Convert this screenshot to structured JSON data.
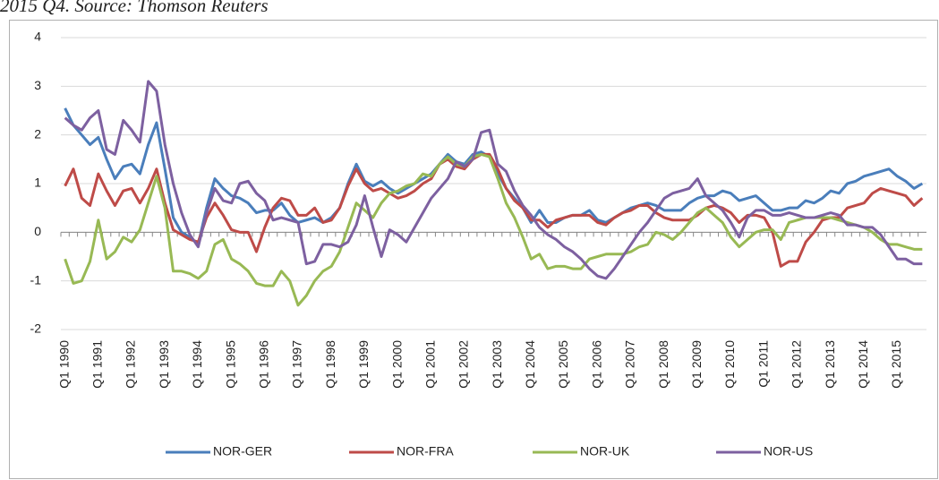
{
  "chart_data": {
    "type": "line",
    "caption": "2015 Q4. Source: Thomson Reuters",
    "categories": [
      "Q1 1990",
      null,
      null,
      null,
      "Q1 1991",
      null,
      null,
      null,
      "Q1 1992",
      null,
      null,
      null,
      "Q1 1993",
      null,
      null,
      null,
      "Q1 1994",
      null,
      null,
      null,
      "Q1 1995",
      null,
      null,
      null,
      "Q1 1996",
      null,
      null,
      null,
      "Q1 1997",
      null,
      null,
      null,
      "Q1 1998",
      null,
      null,
      null,
      "Q1 1999",
      null,
      null,
      null,
      "Q1 2000",
      null,
      null,
      null,
      "Q1 2001",
      null,
      null,
      null,
      "Q1 2002",
      null,
      null,
      null,
      "Q1 2003",
      null,
      null,
      null,
      "Q1 2004",
      null,
      null,
      null,
      "Q1 2005",
      null,
      null,
      null,
      "Q1 2006",
      null,
      null,
      null,
      "Q1 2007",
      null,
      null,
      null,
      "Q1 2008",
      null,
      null,
      null,
      "Q1 2009",
      null,
      null,
      null,
      "Q1 2010",
      null,
      null,
      null,
      "Q1 2011",
      null,
      null,
      null,
      "Q1 2012",
      null,
      null,
      null,
      "Q1 2013",
      null,
      null,
      null,
      "Q1 2014",
      null,
      null,
      null,
      "Q1 2015",
      null,
      null,
      null
    ],
    "series": [
      {
        "name": "NOR-GER",
        "color": "#4a7ebb",
        "values": [
          2.55,
          2.2,
          2.0,
          1.8,
          1.95,
          1.5,
          1.1,
          1.35,
          1.4,
          1.2,
          1.8,
          2.25,
          1.3,
          0.3,
          0.0,
          -0.1,
          -0.25,
          0.5,
          1.1,
          0.9,
          0.75,
          0.7,
          0.6,
          0.4,
          0.45,
          0.45,
          0.6,
          0.35,
          0.2,
          0.25,
          0.3,
          0.2,
          0.3,
          0.5,
          1.0,
          1.4,
          1.05,
          0.95,
          1.05,
          0.9,
          0.8,
          0.9,
          1.0,
          1.1,
          1.2,
          1.4,
          1.6,
          1.45,
          1.4,
          1.6,
          1.65,
          1.55,
          1.2,
          0.9,
          0.7,
          0.5,
          0.2,
          0.45,
          0.2,
          0.2,
          0.3,
          0.35,
          0.35,
          0.45,
          0.25,
          0.2,
          0.3,
          0.4,
          0.5,
          0.55,
          0.6,
          0.55,
          0.45,
          0.45,
          0.45,
          0.6,
          0.7,
          0.75,
          0.75,
          0.85,
          0.8,
          0.65,
          0.7,
          0.75,
          0.6,
          0.45,
          0.45,
          0.5,
          0.5,
          0.65,
          0.6,
          0.7,
          0.85,
          0.8,
          1.0,
          1.05,
          1.15,
          1.2,
          1.25,
          1.3,
          1.15,
          1.05,
          0.9,
          1.0
        ]
      },
      {
        "name": "NOR-FRA",
        "color": "#be4b48",
        "values": [
          0.95,
          1.3,
          0.7,
          0.55,
          1.2,
          0.85,
          0.55,
          0.85,
          0.9,
          0.6,
          0.9,
          1.3,
          0.6,
          0.05,
          -0.05,
          -0.15,
          -0.2,
          0.3,
          0.6,
          0.35,
          0.05,
          0.0,
          0.0,
          -0.4,
          0.1,
          0.5,
          0.7,
          0.65,
          0.35,
          0.35,
          0.5,
          0.2,
          0.25,
          0.5,
          0.95,
          1.3,
          1.0,
          0.85,
          0.9,
          0.8,
          0.7,
          0.75,
          0.85,
          1.0,
          1.1,
          1.4,
          1.5,
          1.35,
          1.3,
          1.5,
          1.6,
          1.6,
          1.3,
          0.9,
          0.65,
          0.5,
          0.25,
          0.25,
          0.1,
          0.25,
          0.3,
          0.35,
          0.35,
          0.35,
          0.2,
          0.15,
          0.3,
          0.4,
          0.45,
          0.55,
          0.55,
          0.4,
          0.3,
          0.25,
          0.25,
          0.25,
          0.35,
          0.5,
          0.55,
          0.5,
          0.4,
          0.2,
          0.35,
          0.35,
          0.3,
          0.0,
          -0.7,
          -0.6,
          -0.6,
          -0.2,
          0.0,
          0.25,
          0.3,
          0.3,
          0.5,
          0.55,
          0.6,
          0.8,
          0.9,
          0.85,
          0.8,
          0.75,
          0.55,
          0.7
        ]
      },
      {
        "name": "NOR-UK",
        "color": "#98b954",
        "values": [
          -0.55,
          -1.05,
          -1.0,
          -0.6,
          0.25,
          -0.55,
          -0.4,
          -0.1,
          -0.2,
          0.05,
          0.6,
          1.15,
          0.5,
          -0.8,
          -0.8,
          -0.85,
          -0.95,
          -0.8,
          -0.25,
          -0.15,
          -0.55,
          -0.65,
          -0.8,
          -1.05,
          -1.1,
          -1.1,
          -0.8,
          -1.0,
          -1.5,
          -1.3,
          -1.0,
          -0.8,
          -0.7,
          -0.4,
          0.1,
          0.6,
          0.45,
          0.3,
          0.6,
          0.8,
          0.85,
          0.95,
          1.0,
          1.2,
          1.15,
          1.4,
          1.55,
          1.4,
          1.35,
          1.55,
          1.6,
          1.55,
          1.1,
          0.6,
          0.3,
          -0.1,
          -0.55,
          -0.45,
          -0.75,
          -0.7,
          -0.7,
          -0.75,
          -0.75,
          -0.55,
          -0.5,
          -0.45,
          -0.45,
          -0.45,
          -0.4,
          -0.3,
          -0.25,
          0.0,
          -0.05,
          -0.15,
          0.0,
          0.2,
          0.4,
          0.5,
          0.35,
          0.2,
          -0.1,
          -0.3,
          -0.15,
          0.0,
          0.05,
          0.05,
          -0.15,
          0.2,
          0.25,
          0.3,
          0.3,
          0.3,
          0.3,
          0.25,
          0.2,
          0.15,
          0.1,
          0.0,
          -0.15,
          -0.25,
          -0.25,
          -0.3,
          -0.35,
          -0.35
        ]
      },
      {
        "name": "NOR-US",
        "color": "#7d60a0",
        "values": [
          2.35,
          2.2,
          2.1,
          2.35,
          2.5,
          1.7,
          1.6,
          2.3,
          2.1,
          1.85,
          3.1,
          2.9,
          1.8,
          1.0,
          0.4,
          -0.05,
          -0.3,
          0.4,
          0.9,
          0.65,
          0.6,
          1.0,
          1.05,
          0.8,
          0.65,
          0.25,
          0.3,
          0.25,
          0.2,
          -0.65,
          -0.6,
          -0.25,
          -0.25,
          -0.3,
          -0.2,
          0.15,
          0.75,
          0.1,
          -0.5,
          0.05,
          -0.05,
          -0.2,
          0.1,
          0.4,
          0.7,
          0.9,
          1.1,
          1.45,
          1.35,
          1.5,
          2.05,
          2.1,
          1.4,
          1.25,
          0.85,
          0.55,
          0.35,
          0.1,
          -0.05,
          -0.15,
          -0.3,
          -0.4,
          -0.55,
          -0.75,
          -0.9,
          -0.95,
          -0.75,
          -0.5,
          -0.25,
          0.0,
          0.2,
          0.45,
          0.7,
          0.8,
          0.85,
          0.9,
          1.1,
          0.75,
          0.6,
          0.45,
          0.2,
          -0.1,
          0.3,
          0.45,
          0.45,
          0.35,
          0.35,
          0.4,
          0.35,
          0.3,
          0.3,
          0.35,
          0.4,
          0.35,
          0.15,
          0.15,
          0.1,
          0.1,
          -0.05,
          -0.3,
          -0.55,
          -0.55,
          -0.65,
          -0.65
        ]
      }
    ],
    "ylim": [
      -2,
      4
    ],
    "yticks": [
      -2,
      -1,
      0,
      1,
      2,
      3,
      4
    ],
    "grid": true,
    "legend": "bottom"
  }
}
